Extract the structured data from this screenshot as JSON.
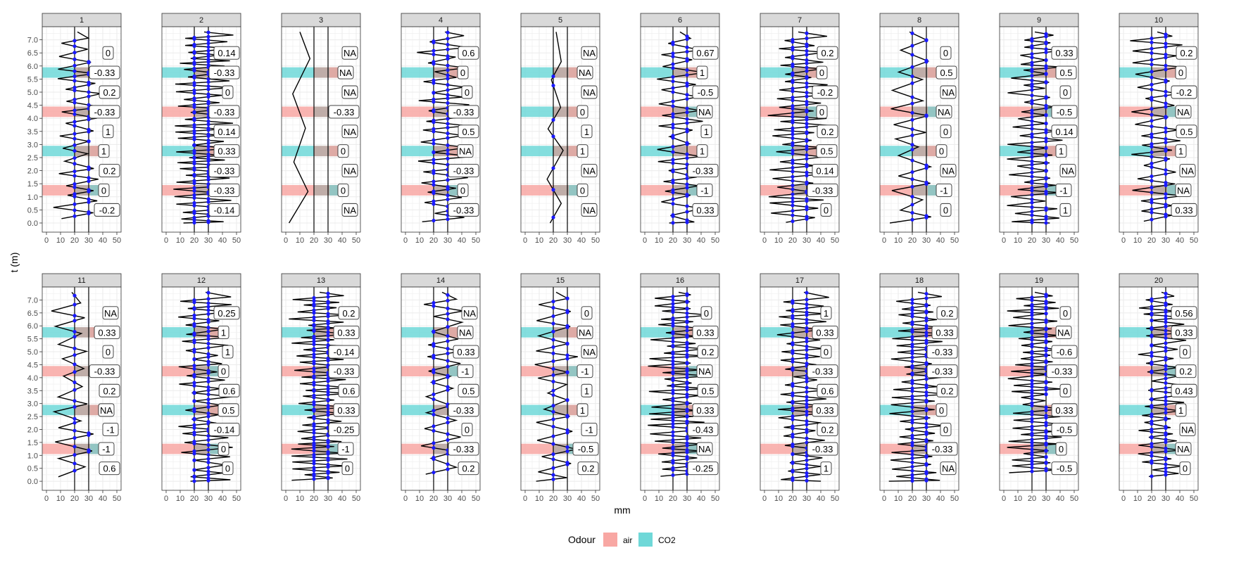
{
  "chart_data": {
    "type": "faceted-line",
    "xlabel": "mm",
    "ylabel": "t (m)",
    "xlim": [
      -3,
      53
    ],
    "ylim": [
      -0.35,
      7.5
    ],
    "x_ticks": [
      0,
      10,
      20,
      30,
      40,
      50
    ],
    "y_ticks": [
      0.0,
      0.5,
      1.0,
      1.5,
      2.0,
      2.5,
      3.0,
      3.5,
      4.0,
      4.5,
      5.0,
      5.5,
      6.0,
      6.5,
      7.0
    ],
    "y_tick_labels": [
      "0.0",
      "0.5",
      "1.0",
      "1.5",
      "2.0",
      "2.5",
      "3.0",
      "3.5",
      "4.0",
      "4.5",
      "5.0",
      "5.5",
      "6.0",
      "6.5",
      "7.0"
    ],
    "reference_lines_x": [
      20,
      30
    ],
    "legend": {
      "title": "Odour",
      "position": "bottom",
      "items": [
        {
          "label": "air",
          "color": "#f8a7a3"
        },
        {
          "label": "CO2",
          "color": "#6fd8d8"
        }
      ]
    },
    "band_x_extent": [
      -3,
      38
    ],
    "band_y_centers": [
      1.25,
      2.75,
      4.25,
      5.75
    ],
    "band_half_height": 0.2,
    "label_y_positions": [
      0.5,
      1.25,
      2.0,
      2.75,
      3.5,
      4.25,
      5.0,
      5.75,
      6.5
    ],
    "colors": {
      "strip": "#d9d9d9",
      "line": "#000000",
      "point": "#1a1aff",
      "grid": "#ebebeb",
      "air": "#f8a7a3",
      "co2": "#6fd8d8"
    },
    "facets": [
      {
        "id": "1",
        "bands": [
          "air",
          "CO2",
          "air",
          "CO2"
        ],
        "labels": [
          "-0.2",
          "0",
          "0.2",
          "1",
          "1",
          "-0.33",
          "0.2",
          "-0.33",
          "0"
        ],
        "center": 22,
        "amp": 16,
        "osc": 15
      },
      {
        "id": "2",
        "bands": [
          "air",
          "CO2",
          "air",
          "CO2"
        ],
        "labels": [
          "-0.14",
          "-0.33",
          "-0.33",
          "0.33",
          "0.14",
          "-0.33",
          "0",
          "-0.33",
          "0.14"
        ],
        "center": 27,
        "amp": 20,
        "osc": 28
      },
      {
        "id": "3",
        "bands": [
          "air",
          "CO2",
          "air",
          "CO2"
        ],
        "labels": [
          "NA",
          "0",
          "NA",
          "0",
          "NA",
          "-0.33",
          "NA",
          "NA",
          "NA"
        ],
        "center": 10,
        "amp": 8,
        "osc": 2
      },
      {
        "id": "4",
        "bands": [
          "air",
          "CO2",
          "air",
          "CO2"
        ],
        "labels": [
          "-0.33",
          "0",
          "-0.33",
          "NA",
          "0.5",
          "-0.33",
          "0",
          "0",
          "0.6"
        ],
        "center": 28,
        "amp": 18,
        "osc": 18
      },
      {
        "id": "5",
        "bands": [
          "air",
          "CO2",
          "CO2",
          "CO2"
        ],
        "labels": [
          "NA",
          "0",
          "NA",
          "1",
          "1",
          "0",
          "NA",
          "NA",
          "NA"
        ],
        "center": 22,
        "amp": 6,
        "osc": 3
      },
      {
        "id": "6",
        "bands": [
          "air",
          "CO2",
          "air",
          "CO2"
        ],
        "labels": [
          "0.33",
          "-1",
          "-0.33",
          "1",
          "1",
          "NA",
          "-0.5",
          "1",
          "0.67"
        ],
        "center": 25,
        "amp": 16,
        "osc": 16
      },
      {
        "id": "7",
        "bands": [
          "air",
          "CO2",
          "air",
          "CO2"
        ],
        "labels": [
          "0",
          "-0.33",
          "0.14",
          "0.5",
          "0.2",
          "0",
          "-0.2",
          "0",
          "0.2"
        ],
        "center": 24,
        "amp": 20,
        "osc": 22
      },
      {
        "id": "8",
        "bands": [
          "air",
          "CO2",
          "air",
          "CO2"
        ],
        "labels": [
          "0",
          "-1",
          "NA",
          "0",
          "0",
          "NA",
          "NA",
          "0.5",
          "0"
        ],
        "center": 18,
        "amp": 14,
        "osc": 10
      },
      {
        "id": "9",
        "bands": [
          "air",
          "CO2",
          "air",
          "CO2"
        ],
        "labels": [
          "1",
          "-1",
          "NA",
          "1",
          "0.14",
          "-0.5",
          "0",
          "0.5",
          "0.33"
        ],
        "center": 22,
        "amp": 18,
        "osc": 24
      },
      {
        "id": "10",
        "bands": [
          "air",
          "CO2",
          "air",
          "CO2"
        ],
        "labels": [
          "0.33",
          "NA",
          "NA",
          "1",
          "0.5",
          "NA",
          "-0.2",
          "0",
          "0.2"
        ],
        "center": 24,
        "amp": 18,
        "osc": 16
      },
      {
        "id": "11",
        "bands": [
          "air",
          "CO2",
          "air",
          "CO2"
        ],
        "labels": [
          "0.6",
          "-1",
          "-1",
          "NA",
          "0.2",
          "-0.33",
          "0",
          "0.33",
          "NA"
        ],
        "center": 18,
        "amp": 14,
        "osc": 10
      },
      {
        "id": "12",
        "bands": [
          "air",
          "CO2",
          "air",
          "CO2"
        ],
        "labels": [
          "0",
          "0",
          "-0.14",
          "0.5",
          "0.6",
          "0",
          "1",
          "1",
          "0.25"
        ],
        "center": 28,
        "amp": 18,
        "osc": 22
      },
      {
        "id": "13",
        "bands": [
          "air",
          "CO2",
          "air",
          "CO2"
        ],
        "labels": [
          "0",
          "-1",
          "-0.25",
          "0.33",
          "0.6",
          "-0.33",
          "-0.14",
          "0.33",
          "0.2"
        ],
        "center": 24,
        "amp": 20,
        "osc": 28
      },
      {
        "id": "14",
        "bands": [
          "air",
          "CO2",
          "air",
          "CO2"
        ],
        "labels": [
          "0.2",
          "-0.33",
          "0",
          "-0.33",
          "0.5",
          "-1",
          "0.33",
          "NA",
          "NA"
        ],
        "center": 26,
        "amp": 14,
        "osc": 12
      },
      {
        "id": "15",
        "bands": [
          "air",
          "CO2",
          "air",
          "CO2"
        ],
        "labels": [
          "0.2",
          "-0.5",
          "-1",
          "1",
          "1",
          "-1",
          "NA",
          "NA",
          "0"
        ],
        "center": 22,
        "amp": 14,
        "osc": 12
      },
      {
        "id": "16",
        "bands": [
          "air",
          "CO2",
          "air",
          "CO2"
        ],
        "labels": [
          "-0.25",
          "NA",
          "-0.43",
          "0.33",
          "0.5",
          "NA",
          "0.2",
          "0.33",
          "0"
        ],
        "center": 24,
        "amp": 20,
        "osc": 26
      },
      {
        "id": "17",
        "bands": [
          "air",
          "CO2",
          "air",
          "CO2"
        ],
        "labels": [
          "1",
          "-0.33",
          "0.2",
          "0.33",
          "0.6",
          "-0.33",
          "0",
          "0.33",
          "1"
        ],
        "center": 28,
        "amp": 18,
        "osc": 22
      },
      {
        "id": "18",
        "bands": [
          "air",
          "CO2",
          "air",
          "CO2"
        ],
        "labels": [
          "NA",
          "-0.33",
          "0",
          "0",
          "0.2",
          "-0.33",
          "-0.33",
          "0.33",
          "0.2"
        ],
        "center": 24,
        "amp": 20,
        "osc": 24
      },
      {
        "id": "19",
        "bands": [
          "air",
          "CO2",
          "air",
          "CO2"
        ],
        "labels": [
          "-0.5",
          "0",
          "-0.5",
          "0.33",
          "0",
          "-0.33",
          "-0.6",
          "NA",
          "0"
        ],
        "center": 22,
        "amp": 18,
        "osc": 26
      },
      {
        "id": "20",
        "bands": [
          "air",
          "CO2",
          "air",
          "CO2"
        ],
        "labels": [
          "0",
          "NA",
          "NA",
          "1",
          "0.43",
          "0.2",
          "0",
          "0.33",
          "0.56"
        ],
        "center": 27,
        "amp": 16,
        "osc": 22
      }
    ]
  }
}
